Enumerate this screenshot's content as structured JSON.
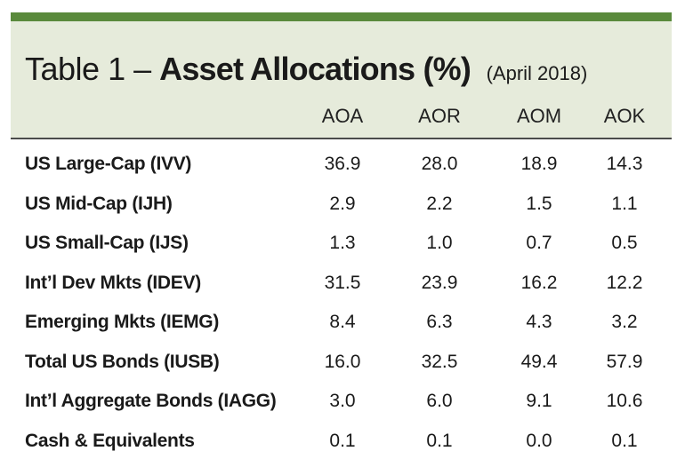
{
  "table": {
    "title_prefix": "Table 1 –",
    "title_main": "Asset Allocations (%)",
    "title_sub": "(April 2018)",
    "columns": [
      "AOA",
      "AOR",
      "AOM",
      "AOK"
    ],
    "rows": [
      {
        "label": "US Large-Cap (IVV)",
        "values": [
          "36.9",
          "28.0",
          "18.9",
          "14.3"
        ]
      },
      {
        "label": "US Mid-Cap (IJH)",
        "values": [
          "2.9",
          "2.2",
          "1.5",
          "1.1"
        ]
      },
      {
        "label": "US Small-Cap (IJS)",
        "values": [
          "1.3",
          "1.0",
          "0.7",
          "0.5"
        ]
      },
      {
        "label": "Int’l Dev Mkts (IDEV)",
        "values": [
          "31.5",
          "23.9",
          "16.2",
          "12.2"
        ]
      },
      {
        "label": "Emerging Mkts  (IEMG)",
        "values": [
          "8.4",
          "6.3",
          "4.3",
          "3.2"
        ]
      },
      {
        "label": "Total US Bonds (IUSB)",
        "values": [
          "16.0",
          "32.5",
          "49.4",
          "57.9"
        ]
      },
      {
        "label": "Int’l Aggregate Bonds (IAGG)",
        "values": [
          "3.0",
          "6.0",
          "9.1",
          "10.6"
        ]
      },
      {
        "label": "Cash & Equivalents",
        "values": [
          "0.1",
          "0.1",
          "0.0",
          "0.1"
        ]
      }
    ]
  },
  "colors": {
    "accent": "#5a8a3c",
    "header_bg": "#e6ebdb",
    "rule": "#4b4b4b"
  }
}
